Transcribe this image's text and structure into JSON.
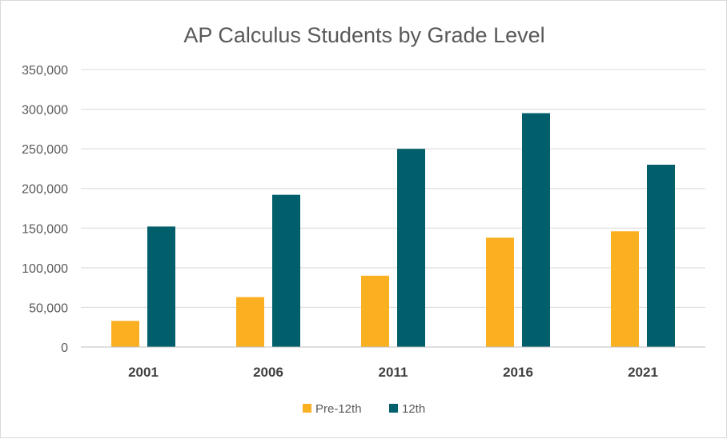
{
  "chart_data": {
    "type": "bar",
    "title": "AP Calculus Students by Grade Level",
    "xlabel": "",
    "ylabel": "",
    "categories": [
      "2001",
      "2006",
      "2011",
      "2016",
      "2021"
    ],
    "series": [
      {
        "name": "Pre-12th",
        "color": "#FBB022",
        "values": [
          33000,
          63000,
          90000,
          138000,
          146000
        ]
      },
      {
        "name": "12th",
        "color": "#005F6B",
        "values": [
          152000,
          192000,
          250000,
          295000,
          230000
        ]
      }
    ],
    "ylim": [
      0,
      350000
    ],
    "yticks": [
      0,
      50000,
      100000,
      150000,
      200000,
      250000,
      300000,
      350000
    ],
    "ytick_labels": [
      "0",
      "50,000",
      "100,000",
      "150,000",
      "200,000",
      "250,000",
      "300,000",
      "350,000"
    ],
    "grid": true,
    "legend_position": "bottom"
  }
}
